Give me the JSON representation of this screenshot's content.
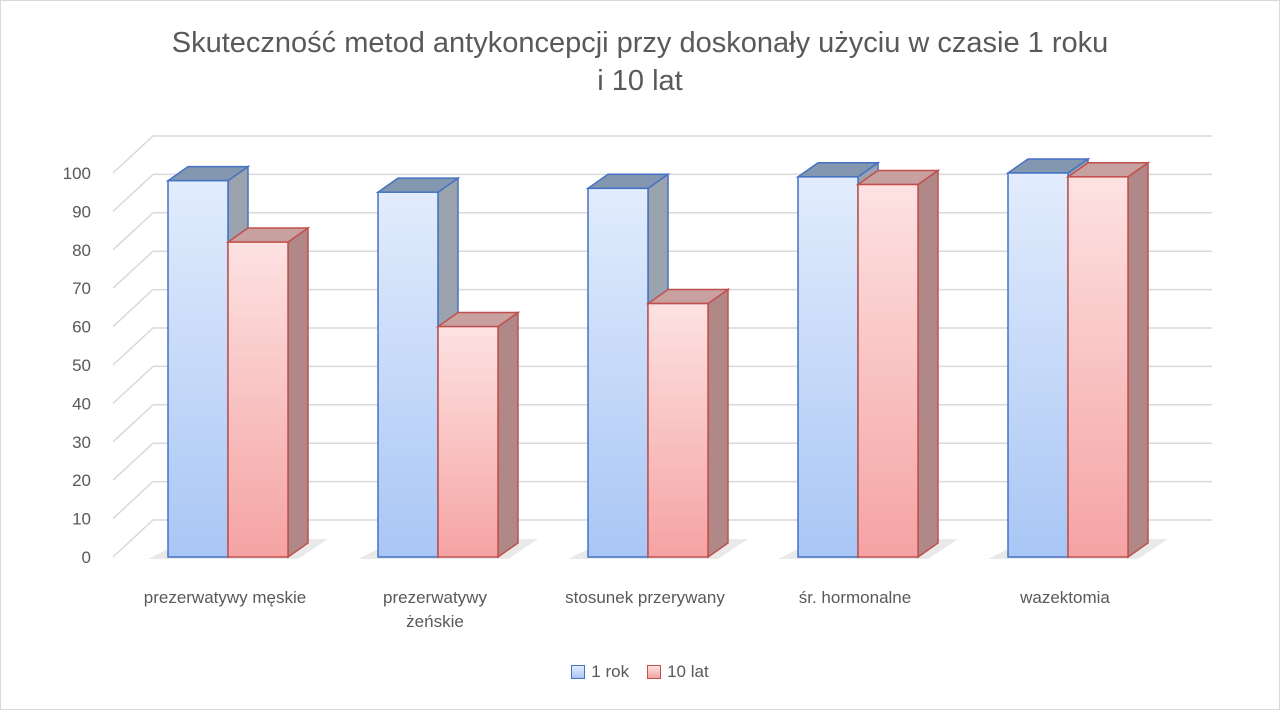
{
  "chart_data": {
    "type": "bar",
    "title_line1": "Skuteczność metod antykoncepcji przy doskonały użyciu w czasie 1 roku",
    "title_line2": "i 10 lat",
    "categories": [
      [
        "prezerwatywy męskie"
      ],
      [
        "prezerwatywy",
        "żeńskie"
      ],
      [
        "stosunek przerywany"
      ],
      [
        "śr. hormonalne"
      ],
      [
        "wazektomia"
      ]
    ],
    "series": [
      {
        "name": "1 rok",
        "values": [
          98,
          95,
          96,
          99,
          100
        ]
      },
      {
        "name": "10 lat",
        "values": [
          82,
          60,
          66,
          97,
          99
        ]
      }
    ],
    "ylim": [
      0,
      100
    ],
    "yticks": [
      0,
      10,
      20,
      30,
      40,
      50,
      60,
      70,
      80,
      90,
      100
    ],
    "grid": true,
    "legend_position": "bottom",
    "colors": {
      "series1_fill_top": "#e2ecfc",
      "series1_fill_bottom": "#a9c6f5",
      "series1_top": "#8497b0",
      "series1_side": "#9aa3ae",
      "series1_edge": "#4472c4",
      "series2_fill_top": "#fde2e2",
      "series2_fill_bottom": "#f5a3a3",
      "series2_top": "#c9a0a0",
      "series2_side": "#b08888",
      "series2_edge": "#c0504d",
      "grid": "#d9d9d9",
      "text": "#595959"
    }
  }
}
